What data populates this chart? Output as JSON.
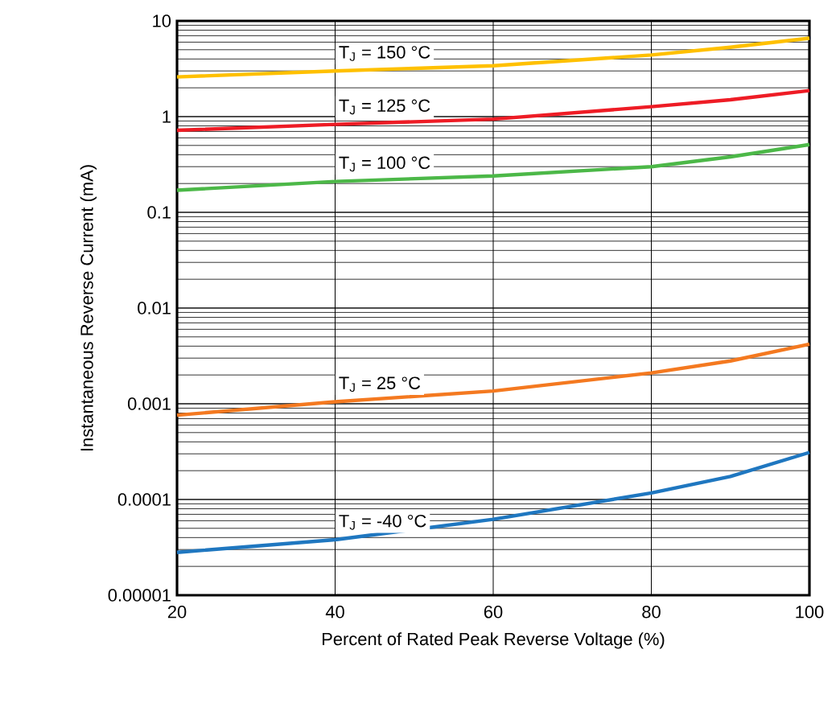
{
  "chart_data": {
    "type": "line",
    "xlabel": "Percent of Rated Peak Reverse Voltage (%)",
    "ylabel": "Instantaneous Reverse Current (mA)",
    "log": "y",
    "grid": true,
    "legend": false,
    "line_style": "solid",
    "marker": "none",
    "xlim": [
      20,
      100
    ],
    "xticks": [
      20,
      40,
      60,
      80,
      100
    ],
    "ylim": [
      1e-05,
      10
    ],
    "yticks": [
      {
        "value": 1e-05,
        "label": "0.00001"
      },
      {
        "value": 0.0001,
        "label": "0.0001"
      },
      0.001,
      0.01,
      0.1,
      1,
      10
    ],
    "x": [
      20,
      40,
      60,
      80,
      90,
      100
    ],
    "series": [
      {
        "name": "T$_{J}$ = 150 °C",
        "color": "#ffc000",
        "values": [
          2.6,
          3.0,
          3.4,
          4.4,
          5.3,
          6.6
        ]
      },
      {
        "name": "T$_{J}$ = 125 °C",
        "color": "#ee1c25",
        "values": [
          0.72,
          0.83,
          0.94,
          1.27,
          1.5,
          1.87
        ]
      },
      {
        "name": "T$_{J}$ = 100 °C",
        "color": "#4cb848",
        "values": [
          0.17,
          0.21,
          0.24,
          0.3,
          0.38,
          0.51
        ]
      },
      {
        "name": "T$_{J}$ = 25 °C",
        "color": "#f47920",
        "values": [
          0.00076,
          0.00105,
          0.00136,
          0.0021,
          0.0028,
          0.0042
        ]
      },
      {
        "name": "T$_{J}$ = -40 °C",
        "color": "#1f77c0",
        "values": [
          2.8e-05,
          3.8e-05,
          6.2e-05,
          0.000117,
          0.000174,
          0.00031
        ]
      }
    ]
  }
}
